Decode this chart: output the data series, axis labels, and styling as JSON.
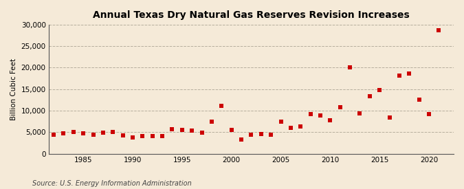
{
  "title": "Annual Texas Dry Natural Gas Reserves Revision Increases",
  "ylabel": "Billion Cubic Feet",
  "source": "Source: U.S. Energy Information Administration",
  "bg_color": "#f5ead8",
  "plot_bg_color": "#f5ead8",
  "marker_color": "#cc0000",
  "grid_color": "#b0a898",
  "years": [
    1982,
    1983,
    1984,
    1985,
    1986,
    1987,
    1988,
    1989,
    1990,
    1991,
    1992,
    1993,
    1994,
    1995,
    1996,
    1997,
    1998,
    1999,
    2000,
    2001,
    2002,
    2003,
    2004,
    2005,
    2006,
    2007,
    2008,
    2009,
    2010,
    2011,
    2012,
    2013,
    2014,
    2015,
    2016,
    2017,
    2018,
    2019,
    2020,
    2021
  ],
  "values": [
    4400,
    4800,
    5000,
    4700,
    4500,
    4900,
    5100,
    4300,
    3800,
    4100,
    4100,
    4100,
    5700,
    5600,
    5400,
    4900,
    7500,
    11200,
    5600,
    3400,
    4400,
    4600,
    4500,
    7500,
    6100,
    6400,
    9300,
    8900,
    7800,
    10800,
    20000,
    9400,
    13300,
    14800,
    8500,
    18100,
    18600,
    12500,
    9300,
    28700
  ],
  "xlim": [
    1981.5,
    2022.5
  ],
  "ylim": [
    0,
    30000
  ],
  "yticks": [
    0,
    5000,
    10000,
    15000,
    20000,
    25000,
    30000
  ],
  "xticks": [
    1985,
    1990,
    1995,
    2000,
    2005,
    2010,
    2015,
    2020
  ],
  "title_fontsize": 10,
  "tick_fontsize": 7.5,
  "ylabel_fontsize": 7.5,
  "source_fontsize": 7
}
